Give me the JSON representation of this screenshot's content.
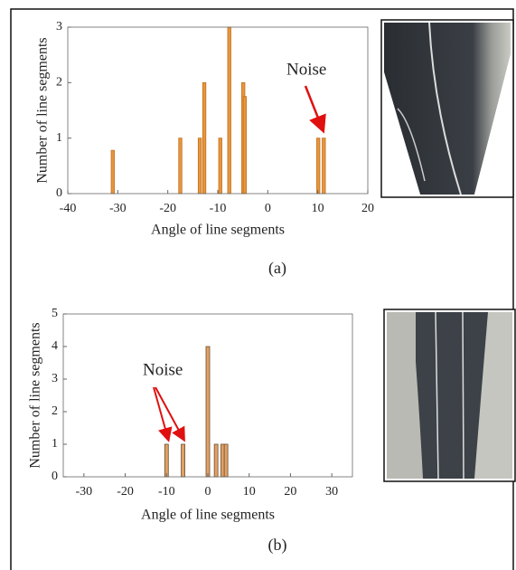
{
  "chart_data": [
    {
      "type": "bar",
      "xlabel": "Angle of line segments",
      "ylabel": "Number of line segments",
      "x": [
        -31,
        -17.5,
        -13.6,
        -12.7,
        -9.5,
        -7.7,
        -4.9,
        -4.6,
        10.1,
        11.2
      ],
      "values": [
        0.78,
        1,
        1,
        2,
        1,
        3,
        2,
        1.75,
        1,
        1
      ],
      "color": "#e8953c",
      "xlim": [
        -40,
        20
      ],
      "xticks": [
        -40,
        -30,
        -20,
        -10,
        0,
        10,
        20
      ],
      "ylim": [
        0,
        3
      ],
      "yticks": [
        0,
        1,
        2,
        3
      ],
      "annotation": "Noise",
      "caption": "(a)"
    },
    {
      "type": "bar",
      "xlabel": "Angle of line segments",
      "ylabel": "Number of line segments",
      "x": [
        -10,
        -6,
        0,
        2,
        3.6,
        4.4
      ],
      "values": [
        1,
        1,
        4,
        1,
        1,
        1
      ],
      "color": "#e0a066",
      "xlim": [
        -35,
        35
      ],
      "xticks": [
        -30,
        -20,
        -10,
        0,
        10,
        20,
        30
      ],
      "ylim": [
        0,
        5
      ],
      "yticks": [
        0,
        1,
        2,
        3,
        4,
        5
      ],
      "annotation": "Noise",
      "caption": "(b)"
    }
  ]
}
